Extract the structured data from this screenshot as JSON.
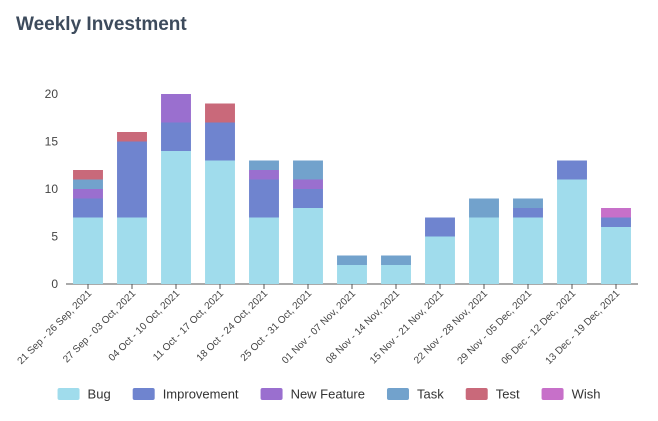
{
  "title": "Weekly Investment",
  "chart_data": {
    "type": "bar",
    "stacked": true,
    "title": "Weekly Investment",
    "xlabel": "",
    "ylabel": "",
    "ylim": [
      0,
      20
    ],
    "yticks": [
      0,
      5,
      10,
      15,
      20
    ],
    "grid": false,
    "legend": "bottom",
    "categories": [
      "21 Sep - 26 Sep, 2021",
      "27 Sep - 03 Oct, 2021",
      "04 Oct - 10 Oct, 2021",
      "11 Oct - 17 Oct, 2021",
      "18 Oct - 24 Oct, 2021",
      "25 Oct - 31 Oct, 2021",
      "01 Nov - 07 Nov, 2021",
      "08 Nov - 14 Nov, 2021",
      "15 Nov - 21 Nov, 2021",
      "22 Nov - 28 Nov, 2021",
      "29 Nov - 05 Dec, 2021",
      "06 Dec - 12 Dec, 2021",
      "13 Dec - 19 Dec, 2021"
    ],
    "series": [
      {
        "name": "Bug",
        "color": "#a0dcec",
        "values": [
          7,
          7,
          14,
          13,
          7,
          8,
          2,
          2,
          5,
          7,
          7,
          11,
          6
        ]
      },
      {
        "name": "Improvement",
        "color": "#6f84cf",
        "values": [
          2,
          8,
          3,
          4,
          4,
          2,
          0,
          0,
          2,
          0,
          1,
          2,
          1
        ]
      },
      {
        "name": "New Feature",
        "color": "#9a6fcf",
        "values": [
          1,
          0,
          3,
          0,
          1,
          1,
          0,
          0,
          0,
          0,
          0,
          0,
          0
        ]
      },
      {
        "name": "Task",
        "color": "#72a2cc",
        "values": [
          1,
          0,
          0,
          0,
          1,
          2,
          1,
          1,
          0,
          2,
          1,
          0,
          0
        ]
      },
      {
        "name": "Test",
        "color": "#c9697a",
        "values": [
          1,
          1,
          0,
          2,
          0,
          0,
          0,
          0,
          0,
          0,
          0,
          0,
          0
        ]
      },
      {
        "name": "Wish",
        "color": "#c770c9",
        "values": [
          0,
          0,
          0,
          0,
          0,
          0,
          0,
          0,
          0,
          0,
          0,
          0,
          1
        ]
      }
    ]
  }
}
